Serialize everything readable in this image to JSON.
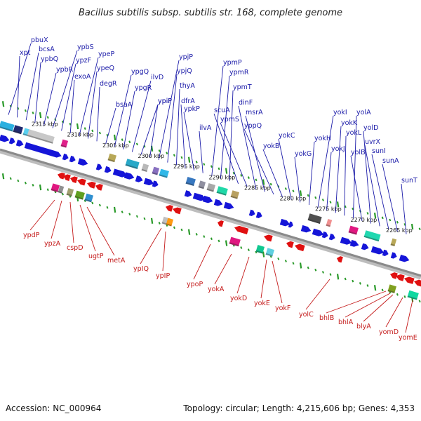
{
  "title": "Bacillus subtilis subsp. subtilis str. 168, complete genome",
  "footer": {
    "accession": "Accession: NC_000964",
    "summary": "Topology: circular; Length: 4,215,606 bp; Genes: 4,353"
  },
  "colors": {
    "top_label": "#1a1aa8",
    "bottom_label": "#c41a1a",
    "forward_gene": "#1515d8",
    "reverse_gene": "#e01010",
    "tick": "#2a9a2a",
    "backbone": "#8a8a8a"
  },
  "scale_labels": [
    "2315 kbp",
    "2310 kbp",
    "2305 kbp",
    "2300 kbp",
    "2295 kbp",
    "2290 kbp",
    "2285 kbp",
    "2280 kbp",
    "2275 kbp",
    "2270 kbp",
    "2265 kbp"
  ],
  "top_labels": [
    "pbuX",
    "xpt",
    "bcsA",
    "ypbQ",
    "ypbR",
    "ypbS",
    "ypzF",
    "exoA",
    "ypeP",
    "ypeQ",
    "degR",
    "bsaA",
    "ypgQ",
    "ypgR",
    "ilvD",
    "ypiP",
    "ypiP",
    "ypjP",
    "ypjQ",
    "thyA",
    "dfrA",
    "ypkP",
    "ilvA",
    "ypmP",
    "ypmR",
    "ypmT",
    "scuA",
    "ypmS",
    "dinF",
    "msrA",
    "yppQ",
    "yokB",
    "yokC",
    "yokG",
    "yokH",
    "yokI",
    "yokJ",
    "yokK",
    "yokL",
    "yolA",
    "yolB",
    "yolD",
    "uvrX",
    "sunI",
    "sunA",
    "sunT"
  ],
  "bottom_labels": [
    "ypdP",
    "ypzA",
    "cspD",
    "ugtP",
    "metA",
    "ypIQ",
    "ypIP",
    "ypoP",
    "yokA",
    "yokD",
    "yokE",
    "yokF",
    "yolC",
    "bhlB",
    "bhlA",
    "blyA",
    "yomD",
    "yomE"
  ]
}
